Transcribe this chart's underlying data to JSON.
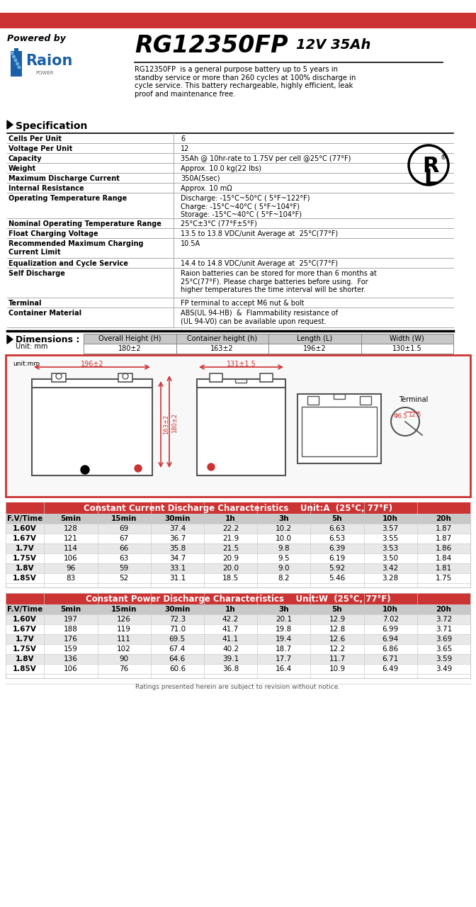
{
  "title_model": "RG12350FP",
  "title_spec": "12V 35Ah",
  "powered_by": "Powered by",
  "description": "RG12350FP  is a general purpose battery up to 5 years in\nstandby service or more than 260 cycles at 100% discharge in\ncycle service. This battery rechargeable, highly efficient, leak\nproof and maintenance free.",
  "spec_title": "Specification",
  "spec_rows": [
    [
      "Cells Per Unit",
      "6"
    ],
    [
      "Voltage Per Unit",
      "12"
    ],
    [
      "Capacity",
      "35Ah @ 10hr-rate to 1.75V per cell @25°C (77°F)"
    ],
    [
      "Weight",
      "Approx. 10.0 kg(22 lbs)"
    ],
    [
      "Maximum Discharge Current",
      "350A(5sec)"
    ],
    [
      "Internal Resistance",
      "Approx. 10 mΩ"
    ],
    [
      "Operating Temperature Range",
      "Discharge: -15°C~50°C ( 5°F~122°F)\nCharge: -15°C~40°C ( 5°F~104°F)\nStorage: -15°C~40°C ( 5°F~104°F)"
    ],
    [
      "Nominal Operating Temperature Range",
      "25°C±3°C (77°F±5°F)"
    ],
    [
      "Float Charging Voltage",
      "13.5 to 13.8 VDC/unit Average at  25°C(77°F)"
    ],
    [
      "Recommended Maximum Charging\nCurrent Limit",
      "10.5A"
    ],
    [
      "Equalization and Cycle Service",
      "14.4 to 14.8 VDC/unit Average at  25°C(77°F)"
    ],
    [
      "Self Discharge",
      "Raion batteries can be stored for more than 6 months at\n25°C(77°F). Please charge batteries before using.  For\nhigher temperatures the time interval will be shorter."
    ],
    [
      "Terminal",
      "FP terminal to accept M6 nut & bolt"
    ],
    [
      "Container Material",
      "ABS(UL 94-HB)  &  Flammability resistance of\n(UL 94-V0) can be available upon request."
    ]
  ],
  "dim_title": "Dimensions :",
  "dim_unit": "Unit: mm",
  "dim_headers": [
    "Overall Height (H)",
    "Container height (h)",
    "Length (L)",
    "Width (W)"
  ],
  "dim_values": [
    "180±2",
    "163±2",
    "196±2",
    "130±1.5"
  ],
  "cc_title": "Constant Current Discharge Characteristics",
  "cc_unit": "Unit:A  (25°C, 77°F)",
  "cc_headers": [
    "F.V/Time",
    "5min",
    "15min",
    "30min",
    "1h",
    "3h",
    "5h",
    "10h",
    "20h"
  ],
  "cc_rows": [
    [
      "1.60V",
      "128",
      "69",
      "37.4",
      "22.2",
      "10.2",
      "6.63",
      "3.57",
      "1.87"
    ],
    [
      "1.67V",
      "121",
      "67",
      "36.7",
      "21.9",
      "10.0",
      "6.53",
      "3.55",
      "1.87"
    ],
    [
      "1.7V",
      "114",
      "66",
      "35.8",
      "21.5",
      "9.8",
      "6.39",
      "3.53",
      "1.86"
    ],
    [
      "1.75V",
      "106",
      "63",
      "34.7",
      "20.9",
      "9.5",
      "6.19",
      "3.50",
      "1.84"
    ],
    [
      "1.8V",
      "96",
      "59",
      "33.1",
      "20.0",
      "9.0",
      "5.92",
      "3.42",
      "1.81"
    ],
    [
      "1.85V",
      "83",
      "52",
      "31.1",
      "18.5",
      "8.2",
      "5.46",
      "3.28",
      "1.75"
    ]
  ],
  "cp_title": "Constant Power Discharge Characteristics",
  "cp_unit": "Unit:W  (25°C, 77°F)",
  "cp_headers": [
    "F.V/Time",
    "5min",
    "15min",
    "30min",
    "1h",
    "3h",
    "5h",
    "10h",
    "20h"
  ],
  "cp_rows": [
    [
      "1.60V",
      "197",
      "126",
      "72.3",
      "42.2",
      "20.1",
      "12.9",
      "7.02",
      "3.72"
    ],
    [
      "1.67V",
      "188",
      "119",
      "71.0",
      "41.7",
      "19.8",
      "12.8",
      "6.99",
      "3.71"
    ],
    [
      "1.7V",
      "176",
      "111",
      "69.5",
      "41.1",
      "19.4",
      "12.6",
      "6.94",
      "3.69"
    ],
    [
      "1.75V",
      "159",
      "102",
      "67.4",
      "40.2",
      "18.7",
      "12.2",
      "6.86",
      "3.65"
    ],
    [
      "1.8V",
      "136",
      "90",
      "64.6",
      "39.1",
      "17.7",
      "11.7",
      "6.71",
      "3.59"
    ],
    [
      "1.85V",
      "106",
      "76",
      "60.6",
      "36.8",
      "16.4",
      "10.9",
      "6.49",
      "3.49"
    ]
  ],
  "footer": "Ratings presented herein are subject to revision without notice.",
  "red_bar_color": "#cc3333",
  "header_bg": "#c8c8c8",
  "table_header_bg": "#cc3333",
  "table_header_fg": "#ffffff",
  "alt_row_bg": "#e8e8e8",
  "border_color": "#333333",
  "dim_header_bg": "#c8c8c8"
}
